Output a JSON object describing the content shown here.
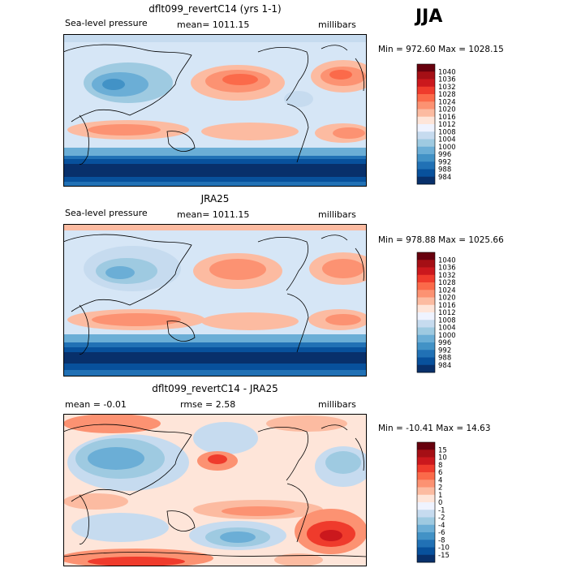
{
  "season": "JJA",
  "panels": [
    {
      "title": "dflt099_revertC14 (yrs 1-1)",
      "left_label": "Sea-level pressure",
      "center_label": "mean= 1011.15",
      "right_label": "millibars",
      "stats": "Min = 972.60 Max = 1028.15",
      "colorbar": {
        "labels": [
          "1040",
          "1036",
          "1032",
          "1028",
          "1024",
          "1020",
          "1016",
          "1012",
          "1008",
          "1004",
          "1000",
          "996",
          "992",
          "988",
          "984"
        ],
        "colors": [
          "#67000d",
          "#a50f15",
          "#cb181d",
          "#ef3b2c",
          "#fb6a4a",
          "#fc9272",
          "#fcbba1",
          "#fee5d9",
          "#eff3ff",
          "#c6dbef",
          "#9ecae1",
          "#6baed6",
          "#4292c6",
          "#2171b5",
          "#08519c",
          "#08306b"
        ]
      }
    },
    {
      "title": "JRA25",
      "left_label": "Sea-level pressure",
      "center_label": "mean= 1011.15",
      "right_label": "millibars",
      "stats": "Min = 978.88 Max = 1025.66",
      "colorbar": {
        "labels": [
          "1040",
          "1036",
          "1032",
          "1028",
          "1024",
          "1020",
          "1016",
          "1012",
          "1008",
          "1004",
          "1000",
          "996",
          "992",
          "988",
          "984"
        ],
        "colors": [
          "#67000d",
          "#a50f15",
          "#cb181d",
          "#ef3b2c",
          "#fb6a4a",
          "#fc9272",
          "#fcbba1",
          "#fee5d9",
          "#eff3ff",
          "#c6dbef",
          "#9ecae1",
          "#6baed6",
          "#4292c6",
          "#2171b5",
          "#08519c",
          "#08306b"
        ]
      }
    },
    {
      "title": "dflt099_revertC14 - JRA25",
      "left_label": "mean =  -0.01",
      "center_label": "rmse =    2.58",
      "right_label": "millibars",
      "stats": "Min = -10.41 Max =  14.63",
      "colorbar": {
        "labels": [
          "15",
          "10",
          "8",
          "6",
          "4",
          "2",
          "1",
          "0",
          "-1",
          "-2",
          "-4",
          "-6",
          "-8",
          "-10",
          "-15"
        ],
        "colors": [
          "#67000d",
          "#a50f15",
          "#cb181d",
          "#ef3b2c",
          "#fb6a4a",
          "#fc9272",
          "#fcbba1",
          "#fee5d9",
          "#eff3ff",
          "#c6dbef",
          "#9ecae1",
          "#6baed6",
          "#4292c6",
          "#2171b5",
          "#08519c",
          "#08306b"
        ]
      }
    }
  ]
}
